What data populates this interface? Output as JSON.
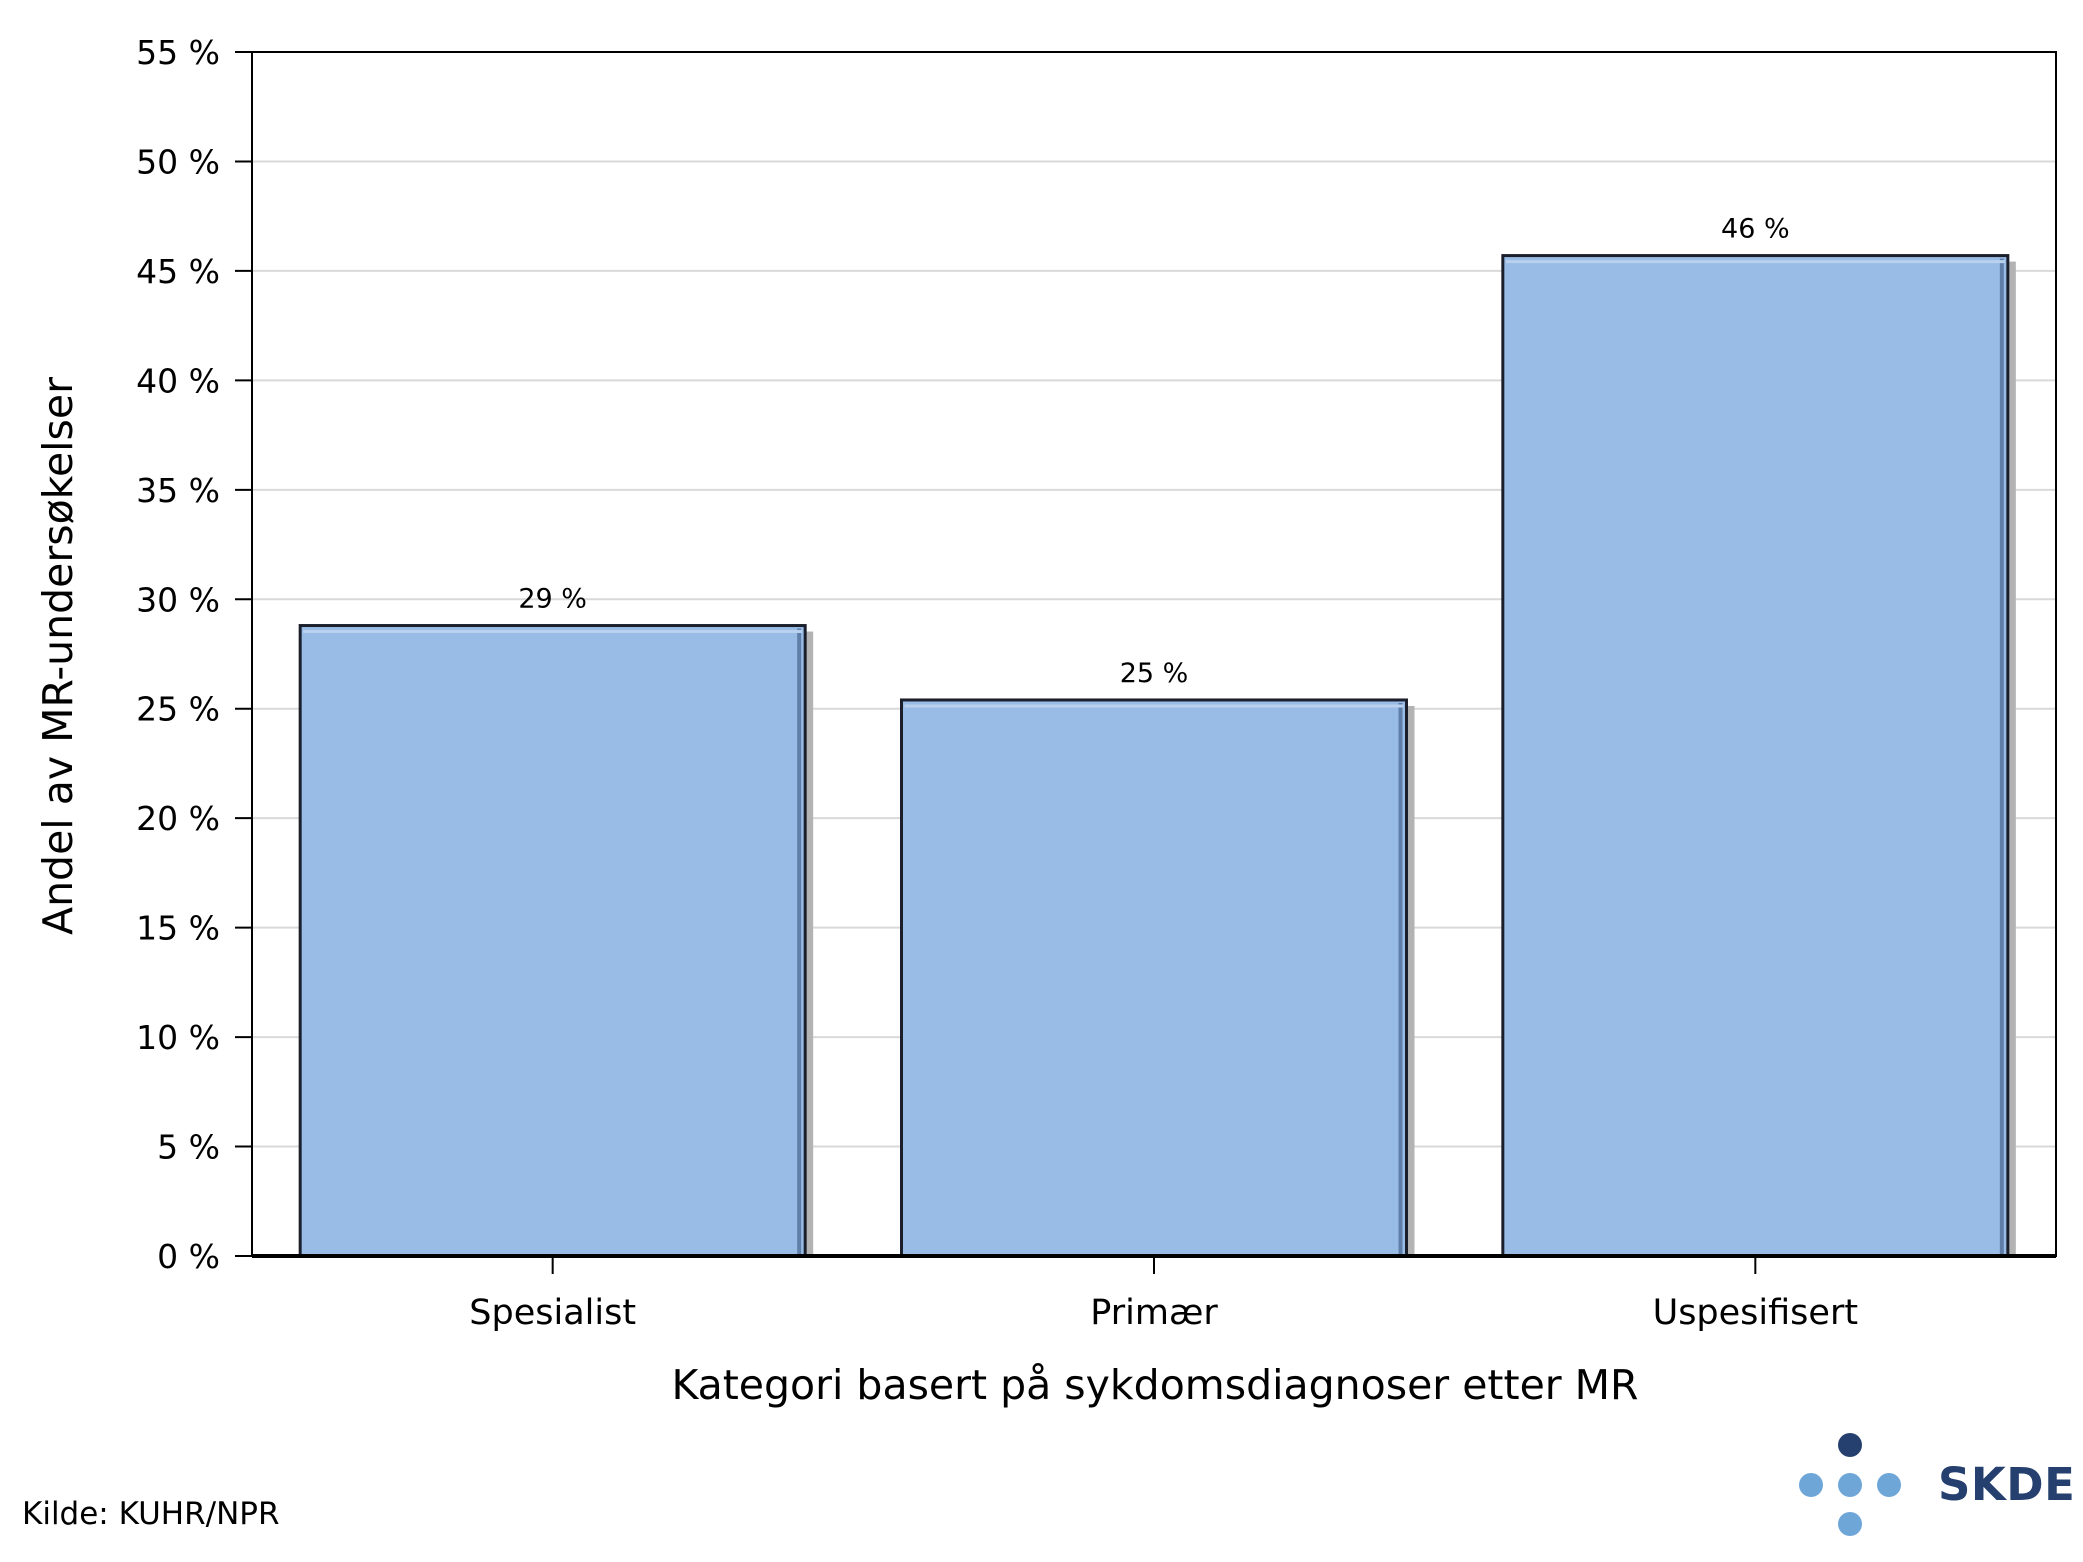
{
  "colors": {
    "bar_fill": "#99bce6",
    "bar_edge": "#1a1f2b",
    "grid": "#d9d9d9",
    "logo_dark": "#25406e",
    "logo_light": "#6fa6d8"
  },
  "chart_data": {
    "type": "bar",
    "categories": [
      "Spesialist",
      "Primær",
      "Uspesifisert"
    ],
    "values": [
      28.8,
      25.4,
      45.7
    ],
    "data_labels": [
      "29 %",
      "25 %",
      "46 %"
    ],
    "xlabel": "Kategori basert på sykdomsdiagnoser etter MR",
    "ylabel": "Andel av MR-undersøkelser",
    "ylim": [
      0,
      55
    ],
    "y_ticks": [
      0,
      5,
      10,
      15,
      20,
      25,
      30,
      35,
      40,
      45,
      50,
      55
    ],
    "y_tick_labels": [
      "0 %",
      "5 %",
      "10 %",
      "15 %",
      "20 %",
      "25 %",
      "30 %",
      "35 %",
      "40 %",
      "45 %",
      "50 %",
      "55 %"
    ],
    "grid": true
  },
  "footer": {
    "source": "Kilde: KUHR/NPR",
    "logo_text": "SKDE",
    "logo_icon": "dots-cross-icon"
  }
}
